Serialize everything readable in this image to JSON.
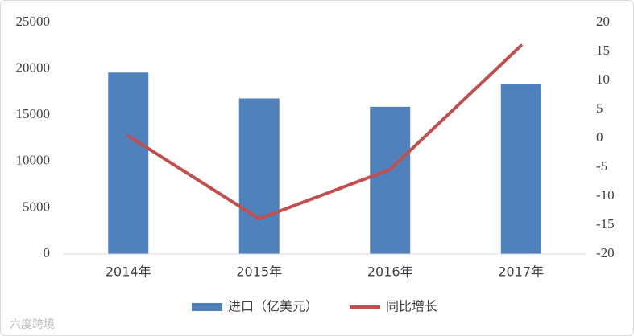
{
  "chart_data": {
    "type": "bar",
    "categories": [
      "2014年",
      "2015年",
      "2016年",
      "2017年"
    ],
    "series": [
      {
        "name": "进口（亿美元）",
        "type": "bar",
        "color": "#4f81bd",
        "axis": "y",
        "values": [
          19600,
          16800,
          15900,
          18400
        ]
      },
      {
        "name": "同比增长",
        "type": "line",
        "color": "#c0504d",
        "axis": "y2",
        "values": [
          0.4,
          -13.9,
          -5.4,
          16.0
        ]
      }
    ],
    "ylim": [
      0,
      25000
    ],
    "yticks": [
      0,
      5000,
      10000,
      15000,
      20000,
      25000
    ],
    "y2lim": [
      -20,
      20
    ],
    "y2ticks": [
      -20,
      -15,
      -10,
      -5,
      0,
      5,
      10,
      15,
      20
    ],
    "grid": false,
    "legend": "bottom",
    "watermark": "六度跨境"
  }
}
